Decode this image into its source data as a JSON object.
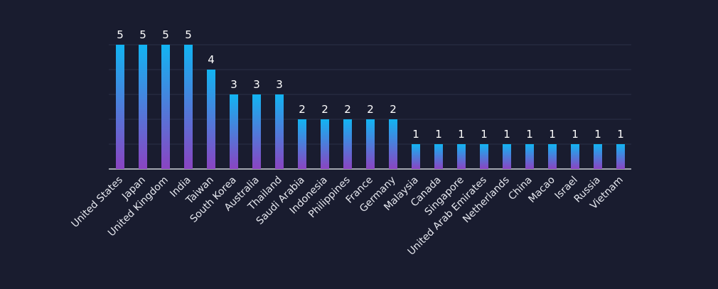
{
  "chart_data": {
    "type": "bar",
    "title": "",
    "xlabel": "",
    "ylabel": "",
    "ylim": [
      0,
      5
    ],
    "grid": true,
    "categories": [
      "United States",
      "Japan",
      "United Kingdom",
      "India",
      "Taiwan",
      "South Korea",
      "Australia",
      "Thailand",
      "Saudi Arabia",
      "Indonesia",
      "Philippines",
      "France",
      "Germany",
      "Malaysia",
      "Canada",
      "Singapore",
      "United Arab Emirates",
      "Netherlands",
      "China",
      "Macao",
      "Israel",
      "Russia",
      "Vietnam"
    ],
    "values": [
      5,
      5,
      5,
      5,
      4,
      3,
      3,
      3,
      2,
      2,
      2,
      2,
      2,
      1,
      1,
      1,
      1,
      1,
      1,
      1,
      1,
      1,
      1
    ],
    "colors": {
      "top": "#12b4f2",
      "bottom": "#8a44c2",
      "background": "#191c2f"
    }
  }
}
